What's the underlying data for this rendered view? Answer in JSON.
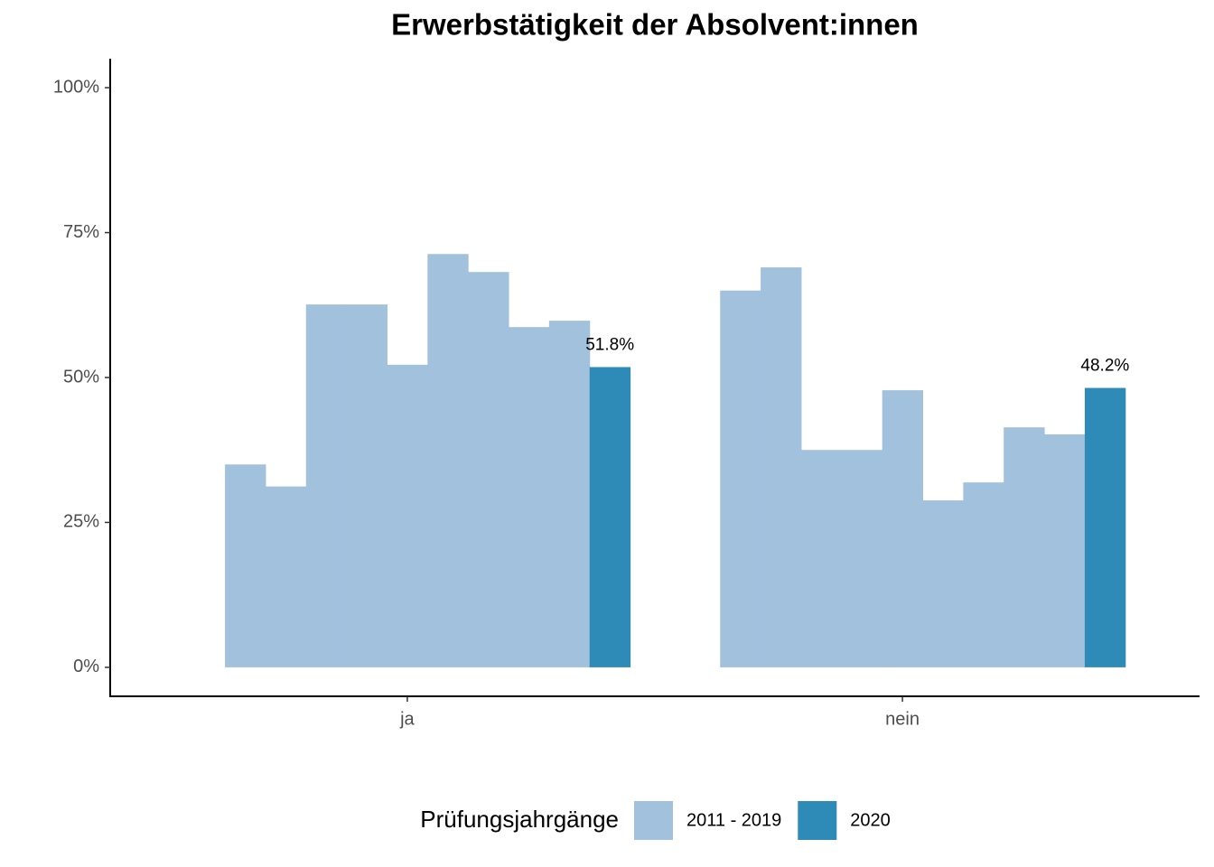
{
  "chart_data": {
    "type": "bar",
    "title": "Erwerbstätigkeit der Absolvent:innen",
    "categories": [
      "ja",
      "nein"
    ],
    "series": [
      {
        "name": "2011 - 2019",
        "color": "#a1c1dd",
        "values": [
          [
            35.0,
            31.2,
            62.6,
            62.6,
            52.2,
            71.3,
            68.2,
            58.7,
            59.8
          ],
          [
            65.0,
            69.0,
            37.5,
            37.5,
            47.8,
            28.8,
            31.9,
            41.4,
            40.2
          ]
        ]
      },
      {
        "name": "2020",
        "color": "#2e8bb7",
        "values": [
          51.8,
          48.2
        ],
        "value_labels": [
          "51.8%",
          "48.2%"
        ]
      }
    ],
    "ylim": [
      -5,
      105
    ],
    "yticks": [
      {
        "value": 0,
        "label": "0%"
      },
      {
        "value": 25,
        "label": "25%"
      },
      {
        "value": 50,
        "label": "50%"
      },
      {
        "value": 75,
        "label": "75%"
      },
      {
        "value": 100,
        "label": "100%"
      }
    ],
    "legend_title": "Prüfungsjahrgänge",
    "legend_position": "bottom",
    "grid": false
  }
}
